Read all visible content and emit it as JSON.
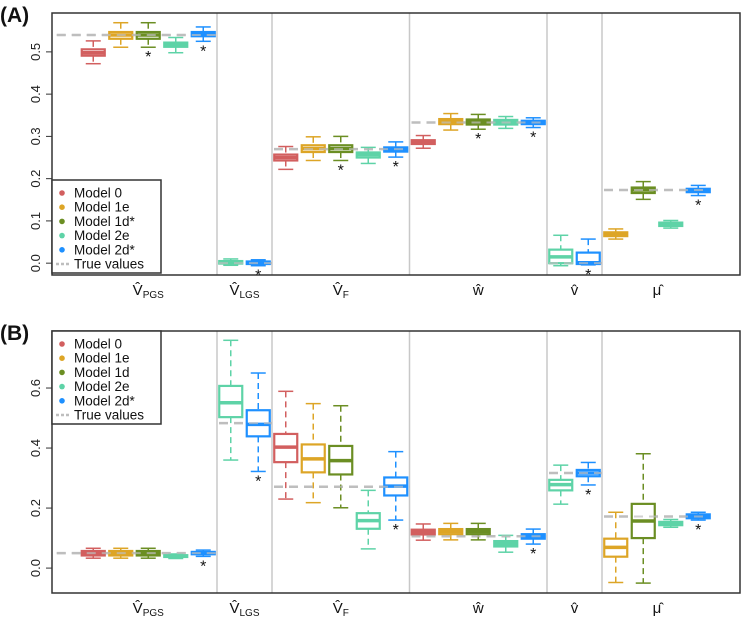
{
  "colors": {
    "Model 0": "#D25F5F",
    "Model 1e": "#DDA526",
    "Model 1d": "#6B8E23",
    "Model 1d*": "#6B8E23",
    "Model 2e": "#5ED3A7",
    "Model 2d*": "#1E90FF",
    "true": "#BEBEBE"
  },
  "chart_data": [
    {
      "type": "box",
      "panel_label": "(A)",
      "yticks": [
        "0.0",
        "0.1",
        "0.2",
        "0.3",
        "0.4",
        "0.5"
      ],
      "ytick_values": [
        0,
        0.1,
        0.2,
        0.3,
        0.4,
        0.5
      ],
      "ylim": [
        -0.028,
        0.592
      ],
      "legend": {
        "placement": "bottom-left",
        "entries": [
          "Model 0",
          "Model 1e",
          "Model 1d*",
          "Model 2e",
          "Model 2d*",
          "True values"
        ]
      },
      "groups": [
        {
          "label": "V̂",
          "sub": "PGS",
          "true_value": 0.54,
          "boxes": [
            {
              "model": "Model 0",
              "min": 0.472,
              "q1": 0.491,
              "median": 0.498,
              "q3": 0.506,
              "max": 0.526,
              "star": false
            },
            {
              "model": "Model 1e",
              "min": 0.511,
              "q1": 0.531,
              "median": 0.54,
              "q3": 0.547,
              "max": 0.569,
              "star": false
            },
            {
              "model": "Model 1d*",
              "min": 0.511,
              "q1": 0.531,
              "median": 0.54,
              "q3": 0.547,
              "max": 0.569,
              "star": true
            },
            {
              "model": "Model 2e",
              "min": 0.498,
              "q1": 0.512,
              "median": 0.517,
              "q3": 0.522,
              "max": 0.534,
              "star": false
            },
            {
              "model": "Model 2d*",
              "min": 0.525,
              "q1": 0.537,
              "median": 0.543,
              "q3": 0.547,
              "max": 0.559,
              "star": true
            }
          ]
        },
        {
          "label": "V̂",
          "sub": "LGS",
          "true_value": 0.0,
          "boxes": [
            {
              "model": "Model 2e",
              "min": -0.005,
              "q1": -0.001,
              "median": 0.002,
              "q3": 0.005,
              "max": 0.01,
              "star": false
            },
            {
              "model": "Model 2d*",
              "min": -0.006,
              "q1": -0.002,
              "median": 0.001,
              "q3": 0.004,
              "max": 0.008,
              "star": true
            }
          ]
        },
        {
          "label": "V̂",
          "sub": "F",
          "true_value": 0.27,
          "boxes": [
            {
              "model": "Model 0",
              "min": 0.222,
              "q1": 0.243,
              "median": 0.25,
              "q3": 0.257,
              "max": 0.276,
              "star": false
            },
            {
              "model": "Model 1e",
              "min": 0.243,
              "q1": 0.263,
              "median": 0.271,
              "q3": 0.279,
              "max": 0.299,
              "star": false
            },
            {
              "model": "Model 1d*",
              "min": 0.243,
              "q1": 0.263,
              "median": 0.271,
              "q3": 0.279,
              "max": 0.3,
              "star": true
            },
            {
              "model": "Model 2e",
              "min": 0.236,
              "q1": 0.25,
              "median": 0.257,
              "q3": 0.262,
              "max": 0.274,
              "star": false
            },
            {
              "model": "Model 2d*",
              "min": 0.251,
              "q1": 0.264,
              "median": 0.27,
              "q3": 0.274,
              "max": 0.287,
              "star": true
            }
          ]
        },
        {
          "label": "ŵ",
          "sub": "",
          "true_value": 0.333,
          "boxes": [
            {
              "model": "Model 0",
              "min": 0.272,
              "q1": 0.282,
              "median": 0.287,
              "q3": 0.291,
              "max": 0.302,
              "star": false
            },
            {
              "model": "Model 1e",
              "min": 0.315,
              "q1": 0.329,
              "median": 0.335,
              "q3": 0.341,
              "max": 0.354,
              "star": false
            },
            {
              "model": "Model 1d*",
              "min": 0.317,
              "q1": 0.328,
              "median": 0.334,
              "q3": 0.34,
              "max": 0.352,
              "star": true
            },
            {
              "model": "Model 2e",
              "min": 0.319,
              "q1": 0.328,
              "median": 0.333,
              "q3": 0.339,
              "max": 0.347,
              "star": false
            },
            {
              "model": "Model 2d*",
              "min": 0.321,
              "q1": 0.329,
              "median": 0.333,
              "q3": 0.337,
              "max": 0.344,
              "star": true
            }
          ]
        },
        {
          "label": "v̂",
          "sub": "",
          "true_value": 0.0,
          "boxes": [
            {
              "model": "Model 2e",
              "min": -0.006,
              "q1": 0.0,
              "median": 0.015,
              "q3": 0.032,
              "max": 0.066,
              "star": false
            },
            {
              "model": "Model 2d*",
              "min": -0.004,
              "q1": -0.002,
              "median": 0.001,
              "q3": 0.025,
              "max": 0.057,
              "star": true
            }
          ]
        },
        {
          "label": "μ̂",
          "sub": "",
          "true_value": 0.173,
          "boxes": [
            {
              "model": "Model 1e",
              "min": 0.057,
              "q1": 0.064,
              "median": 0.069,
              "q3": 0.073,
              "max": 0.081,
              "star": false
            },
            {
              "model": "Model 1d*",
              "min": 0.151,
              "q1": 0.166,
              "median": 0.173,
              "q3": 0.179,
              "max": 0.193,
              "star": false
            },
            {
              "model": "Model 2e",
              "min": 0.083,
              "q1": 0.088,
              "median": 0.093,
              "q3": 0.096,
              "max": 0.101,
              "star": false
            },
            {
              "model": "Model 2d*",
              "min": 0.16,
              "q1": 0.168,
              "median": 0.173,
              "q3": 0.176,
              "max": 0.184,
              "star": true
            }
          ]
        }
      ]
    },
    {
      "type": "box",
      "panel_label": "(B)",
      "yticks": [
        "0.0",
        "0.2",
        "0.4",
        "0.6"
      ],
      "ytick_values": [
        0,
        0.2,
        0.4,
        0.6
      ],
      "ylim": [
        -0.083,
        0.79
      ],
      "legend": {
        "placement": "top-left",
        "entries": [
          "Model 0",
          "Model 1e",
          "Model 1d",
          "Model 2e",
          "Model 2d*",
          "True values"
        ]
      },
      "groups": [
        {
          "label": "V̂",
          "sub": "PGS",
          "true_value": 0.05,
          "boxes": [
            {
              "model": "Model 0",
              "min": 0.033,
              "q1": 0.042,
              "median": 0.049,
              "q3": 0.057,
              "max": 0.066,
              "star": false
            },
            {
              "model": "Model 1e",
              "min": 0.033,
              "q1": 0.042,
              "median": 0.049,
              "q3": 0.057,
              "max": 0.066,
              "star": false
            },
            {
              "model": "Model 1d",
              "min": 0.033,
              "q1": 0.042,
              "median": 0.049,
              "q3": 0.057,
              "max": 0.066,
              "star": false
            },
            {
              "model": "Model 2e",
              "min": 0.032,
              "q1": 0.037,
              "median": 0.04,
              "q3": 0.043,
              "max": 0.047,
              "star": false
            },
            {
              "model": "Model 2d*",
              "min": 0.039,
              "q1": 0.046,
              "median": 0.05,
              "q3": 0.054,
              "max": 0.06,
              "star": true
            }
          ]
        },
        {
          "label": "V̂",
          "sub": "LGS",
          "true_value": 0.483,
          "boxes": [
            {
              "model": "Model 2e",
              "min": 0.36,
              "q1": 0.503,
              "median": 0.551,
              "q3": 0.607,
              "max": 0.759,
              "star": false
            },
            {
              "model": "Model 2d*",
              "min": 0.322,
              "q1": 0.439,
              "median": 0.479,
              "q3": 0.526,
              "max": 0.65,
              "star": true
            }
          ]
        },
        {
          "label": "V̂",
          "sub": "F",
          "true_value": 0.271,
          "boxes": [
            {
              "model": "Model 0",
              "min": 0.23,
              "q1": 0.353,
              "median": 0.403,
              "q3": 0.447,
              "max": 0.589,
              "star": false
            },
            {
              "model": "Model 1e",
              "min": 0.218,
              "q1": 0.319,
              "median": 0.364,
              "q3": 0.412,
              "max": 0.548,
              "star": false
            },
            {
              "model": "Model 1d",
              "min": 0.201,
              "q1": 0.312,
              "median": 0.358,
              "q3": 0.407,
              "max": 0.541,
              "star": false
            },
            {
              "model": "Model 2e",
              "min": 0.064,
              "q1": 0.131,
              "median": 0.158,
              "q3": 0.183,
              "max": 0.259,
              "star": false
            },
            {
              "model": "Model 2d*",
              "min": 0.16,
              "q1": 0.242,
              "median": 0.273,
              "q3": 0.302,
              "max": 0.388,
              "star": true
            }
          ]
        },
        {
          "label": "ŵ",
          "sub": "",
          "true_value": 0.106,
          "boxes": [
            {
              "model": "Model 0",
              "min": 0.093,
              "q1": 0.112,
              "median": 0.12,
              "q3": 0.128,
              "max": 0.147,
              "star": false
            },
            {
              "model": "Model 1e",
              "min": 0.094,
              "q1": 0.113,
              "median": 0.122,
              "q3": 0.13,
              "max": 0.149,
              "star": false
            },
            {
              "model": "Model 1d",
              "min": 0.094,
              "q1": 0.113,
              "median": 0.122,
              "q3": 0.13,
              "max": 0.149,
              "star": false
            },
            {
              "model": "Model 2e",
              "min": 0.053,
              "q1": 0.072,
              "median": 0.081,
              "q3": 0.09,
              "max": 0.109,
              "star": false
            },
            {
              "model": "Model 2d*",
              "min": 0.08,
              "q1": 0.098,
              "median": 0.106,
              "q3": 0.113,
              "max": 0.13,
              "star": true
            }
          ]
        },
        {
          "label": "v̂",
          "sub": "",
          "true_value": 0.317,
          "boxes": [
            {
              "model": "Model 2e",
              "min": 0.213,
              "q1": 0.259,
              "median": 0.278,
              "q3": 0.294,
              "max": 0.343,
              "star": false
            },
            {
              "model": "Model 2d*",
              "min": 0.277,
              "q1": 0.306,
              "median": 0.317,
              "q3": 0.327,
              "max": 0.352,
              "star": true
            }
          ]
        },
        {
          "label": "μ̂",
          "sub": "",
          "true_value": 0.172,
          "boxes": [
            {
              "model": "Model 1e",
              "min": -0.048,
              "q1": 0.038,
              "median": 0.069,
              "q3": 0.098,
              "max": 0.186,
              "star": false
            },
            {
              "model": "Model 1d",
              "min": -0.05,
              "q1": 0.1,
              "median": 0.157,
              "q3": 0.214,
              "max": 0.381,
              "star": false
            },
            {
              "model": "Model 2e",
              "min": 0.136,
              "q1": 0.143,
              "median": 0.149,
              "q3": 0.154,
              "max": 0.162,
              "star": false
            },
            {
              "model": "Model 2d*",
              "min": 0.16,
              "q1": 0.166,
              "median": 0.172,
              "q3": 0.179,
              "max": 0.186,
              "star": true
            }
          ]
        }
      ]
    }
  ]
}
